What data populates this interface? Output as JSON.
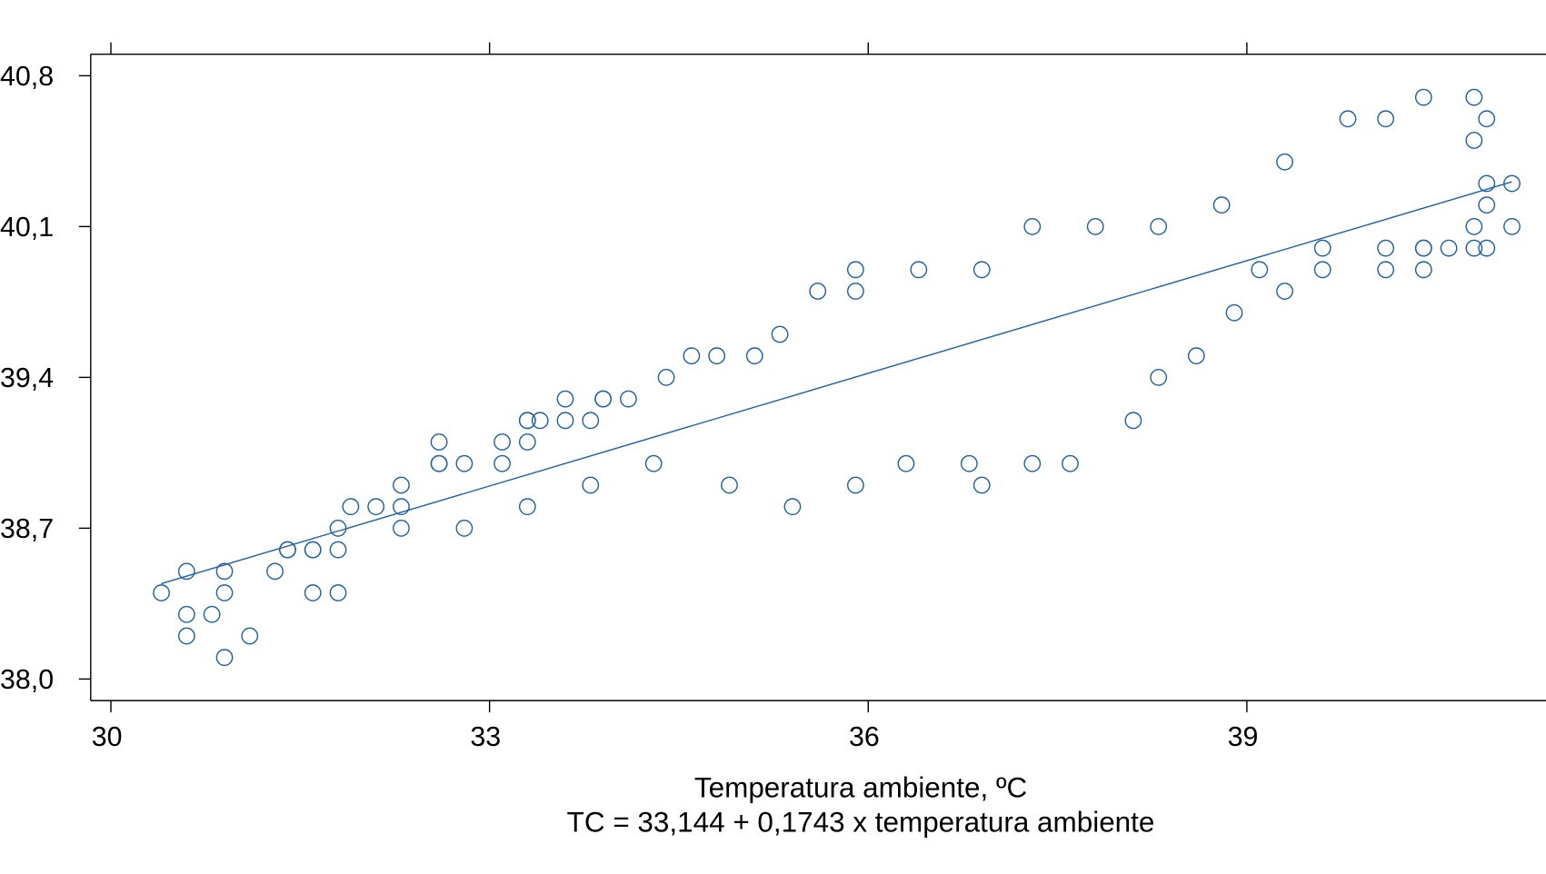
{
  "chart_data": {
    "type": "scatter",
    "title": "",
    "xlabel": "Temperatura ambiente, ºC",
    "subtitle": "TC = 33,144 + 0,1743 x temperatura ambiente",
    "ylabel": "",
    "xlim": [
      29.84,
      41.37
    ],
    "ylim": [
      37.9,
      40.9
    ],
    "x_ticks": [
      30,
      33,
      36,
      39
    ],
    "x_tick_labels": [
      "30",
      "33",
      "36",
      "39"
    ],
    "y_ticks": [
      38.0,
      38.7,
      39.4,
      40.1,
      40.8
    ],
    "y_tick_labels": [
      "38,0",
      "38,7",
      "39,4",
      "40,1",
      "40,8"
    ],
    "grid": false,
    "marker": "open-circle",
    "color": "#1f5fa8",
    "fit_line": {
      "intercept": 33.144,
      "slope": 0.1743,
      "x_range": [
        30.4,
        41.1
      ]
    },
    "points": [
      [
        30.4,
        38.4
      ],
      [
        30.6,
        38.5
      ],
      [
        30.6,
        38.3
      ],
      [
        30.6,
        38.2
      ],
      [
        30.8,
        38.3
      ],
      [
        30.9,
        38.5
      ],
      [
        30.9,
        38.4
      ],
      [
        30.9,
        38.1
      ],
      [
        31.1,
        38.2
      ],
      [
        31.3,
        38.5
      ],
      [
        31.4,
        38.6
      ],
      [
        31.4,
        38.6
      ],
      [
        31.6,
        38.6
      ],
      [
        31.6,
        38.6
      ],
      [
        31.6,
        38.4
      ],
      [
        31.8,
        38.6
      ],
      [
        31.8,
        38.7
      ],
      [
        31.8,
        38.4
      ],
      [
        31.9,
        38.8
      ],
      [
        32.1,
        38.8
      ],
      [
        32.3,
        38.8
      ],
      [
        32.3,
        38.9
      ],
      [
        32.3,
        38.7
      ],
      [
        32.6,
        39.1
      ],
      [
        32.6,
        39.0
      ],
      [
        32.6,
        39.0
      ],
      [
        32.8,
        39.0
      ],
      [
        32.8,
        38.7
      ],
      [
        33.1,
        39.1
      ],
      [
        33.1,
        39.0
      ],
      [
        33.3,
        39.1
      ],
      [
        33.3,
        39.2
      ],
      [
        33.3,
        39.2
      ],
      [
        33.3,
        38.8
      ],
      [
        33.4,
        39.2
      ],
      [
        33.6,
        39.3
      ],
      [
        33.6,
        39.2
      ],
      [
        33.8,
        39.2
      ],
      [
        33.8,
        38.9
      ],
      [
        33.9,
        39.3
      ],
      [
        33.9,
        39.3
      ],
      [
        34.1,
        39.3
      ],
      [
        34.3,
        39.0
      ],
      [
        34.4,
        39.4
      ],
      [
        34.6,
        39.5
      ],
      [
        34.8,
        39.5
      ],
      [
        34.9,
        38.9
      ],
      [
        35.1,
        39.5
      ],
      [
        35.3,
        39.6
      ],
      [
        35.4,
        38.8
      ],
      [
        35.6,
        39.8
      ],
      [
        35.9,
        39.9
      ],
      [
        35.9,
        39.8
      ],
      [
        35.9,
        38.9
      ],
      [
        36.3,
        39.0
      ],
      [
        36.4,
        39.9
      ],
      [
        36.8,
        39.0
      ],
      [
        36.9,
        39.9
      ],
      [
        36.9,
        38.9
      ],
      [
        37.3,
        40.1
      ],
      [
        37.3,
        39.0
      ],
      [
        37.6,
        39.0
      ],
      [
        37.8,
        40.1
      ],
      [
        38.1,
        39.2
      ],
      [
        38.3,
        40.1
      ],
      [
        38.3,
        39.4
      ],
      [
        38.6,
        39.5
      ],
      [
        38.8,
        40.2
      ],
      [
        38.9,
        39.7
      ],
      [
        39.1,
        39.9
      ],
      [
        39.3,
        40.4
      ],
      [
        39.3,
        39.8
      ],
      [
        39.6,
        40.0
      ],
      [
        39.6,
        39.9
      ],
      [
        39.8,
        40.6
      ],
      [
        40.1,
        40.6
      ],
      [
        40.1,
        40.0
      ],
      [
        40.1,
        39.9
      ],
      [
        40.4,
        40.7
      ],
      [
        40.4,
        40.0
      ],
      [
        40.4,
        40.0
      ],
      [
        40.4,
        39.9
      ],
      [
        40.6,
        40.0
      ],
      [
        40.8,
        40.7
      ],
      [
        40.8,
        40.5
      ],
      [
        40.8,
        40.1
      ],
      [
        40.8,
        40.0
      ],
      [
        40.9,
        40.6
      ],
      [
        40.9,
        40.3
      ],
      [
        40.9,
        40.2
      ],
      [
        40.9,
        40.0
      ],
      [
        41.1,
        40.3
      ],
      [
        41.1,
        40.1
      ]
    ]
  }
}
